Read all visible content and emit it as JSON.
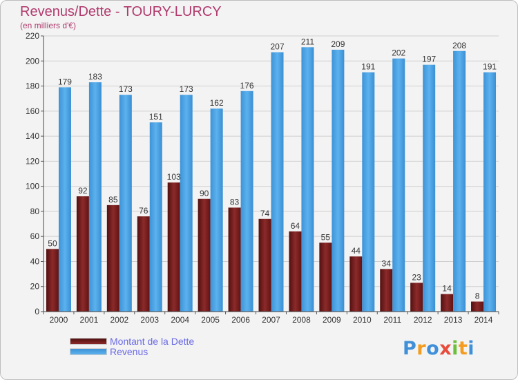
{
  "chart_data": {
    "type": "bar",
    "title": "Revenus/Dette - TOURY-LURCY",
    "subtitle": "(en milliers d'€)",
    "categories": [
      "2000",
      "2001",
      "2002",
      "2003",
      "2004",
      "2005",
      "2006",
      "2007",
      "2008",
      "2009",
      "2010",
      "2011",
      "2012",
      "2013",
      "2014"
    ],
    "series": [
      {
        "name": "Montant de la Dette",
        "color": "#7b1e1e",
        "values": [
          50,
          92,
          85,
          76,
          103,
          90,
          83,
          74,
          64,
          55,
          44,
          34,
          23,
          14,
          8
        ]
      },
      {
        "name": "Revenus",
        "color": "#4aa3e6",
        "values": [
          179,
          183,
          173,
          151,
          173,
          162,
          176,
          207,
          211,
          209,
          191,
          202,
          197,
          208,
          191
        ]
      }
    ],
    "ylim": [
      0,
      220
    ],
    "yticks": [
      0,
      20,
      40,
      60,
      80,
      100,
      120,
      140,
      160,
      180,
      200,
      220
    ],
    "xlabel": "",
    "ylabel": "",
    "grid": true,
    "legend_position": "bottom-left"
  },
  "branding": {
    "logo_letters": [
      "P",
      "r",
      "o",
      "x",
      "i",
      "t",
      "i"
    ],
    "logo_colors": [
      "#3f8fd9",
      "#f39c1f",
      "#3f8fd9",
      "#e84c3d",
      "#6cbf3a",
      "#f39c1f",
      "#3f8fd9"
    ]
  }
}
